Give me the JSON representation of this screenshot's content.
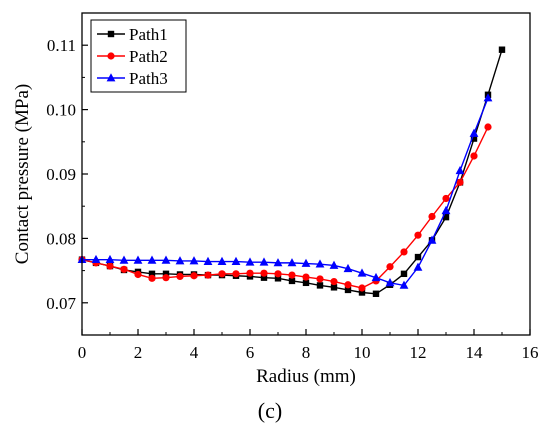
{
  "chart_data": {
    "type": "line",
    "title": "",
    "xlabel": "Radius (mm)",
    "ylabel": "Contact pressure (MPa)",
    "panel_label": "(c)",
    "xlim": [
      0,
      16
    ],
    "ylim": [
      0.065,
      0.115
    ],
    "xticks": [
      "0",
      "2",
      "4",
      "6",
      "8",
      "10",
      "12",
      "14",
      "16"
    ],
    "yticks": [
      "0.07",
      "0.08",
      "0.09",
      "0.10",
      "0.11"
    ],
    "legend_position": "top-left",
    "series": [
      {
        "name": "Path1",
        "color": "#000000",
        "marker": "square",
        "x": [
          0,
          0.5,
          1,
          1.5,
          2,
          2.5,
          3,
          3.5,
          4,
          4.5,
          5,
          5.5,
          6,
          6.5,
          7,
          7.5,
          8,
          8.5,
          9,
          9.5,
          10,
          10.5,
          11,
          11.5,
          12,
          12.5,
          13,
          13.5,
          14,
          14.5,
          15
        ],
        "values": [
          0.0767,
          0.0762,
          0.0757,
          0.0751,
          0.0748,
          0.0745,
          0.0745,
          0.0744,
          0.0744,
          0.0743,
          0.0743,
          0.0742,
          0.0741,
          0.0739,
          0.0738,
          0.0734,
          0.0731,
          0.0727,
          0.0724,
          0.072,
          0.0716,
          0.0714,
          0.0728,
          0.0745,
          0.0771,
          0.0797,
          0.0833,
          0.0887,
          0.0955,
          0.1023,
          0.1093
        ]
      },
      {
        "name": "Path2",
        "color": "#ff0000",
        "marker": "circle",
        "x": [
          0,
          0.5,
          1,
          1.5,
          2,
          2.5,
          3,
          3.5,
          4,
          4.5,
          5,
          5.5,
          6,
          6.5,
          7,
          7.5,
          8,
          8.5,
          9,
          9.5,
          10,
          10.5,
          11,
          11.5,
          12,
          12.5,
          13,
          13.5,
          14,
          14.5
        ],
        "values": [
          0.0767,
          0.0762,
          0.0757,
          0.0752,
          0.0744,
          0.0738,
          0.0739,
          0.0741,
          0.0742,
          0.0743,
          0.0745,
          0.0745,
          0.0746,
          0.0746,
          0.0745,
          0.0743,
          0.074,
          0.0737,
          0.0733,
          0.0728,
          0.0723,
          0.0734,
          0.0756,
          0.0779,
          0.0805,
          0.0834,
          0.0862,
          0.0887,
          0.0928,
          0.0973
        ]
      },
      {
        "name": "Path3",
        "color": "#0000ff",
        "marker": "triangle",
        "x": [
          0,
          0.5,
          1,
          1.5,
          2,
          2.5,
          3,
          3.5,
          4,
          4.5,
          5,
          5.5,
          6,
          6.5,
          7,
          7.5,
          8,
          8.5,
          9,
          9.5,
          10,
          10.5,
          11,
          11.5,
          12,
          12.5,
          13,
          13.5,
          14,
          14.5
        ],
        "values": [
          0.0767,
          0.0767,
          0.0767,
          0.0766,
          0.0766,
          0.0766,
          0.0766,
          0.0765,
          0.0765,
          0.0764,
          0.0764,
          0.0764,
          0.0763,
          0.0763,
          0.0762,
          0.0762,
          0.0761,
          0.076,
          0.0758,
          0.0753,
          0.0746,
          0.0739,
          0.0731,
          0.0727,
          0.0755,
          0.0797,
          0.0843,
          0.0905,
          0.0963,
          0.1018
        ]
      }
    ]
  }
}
